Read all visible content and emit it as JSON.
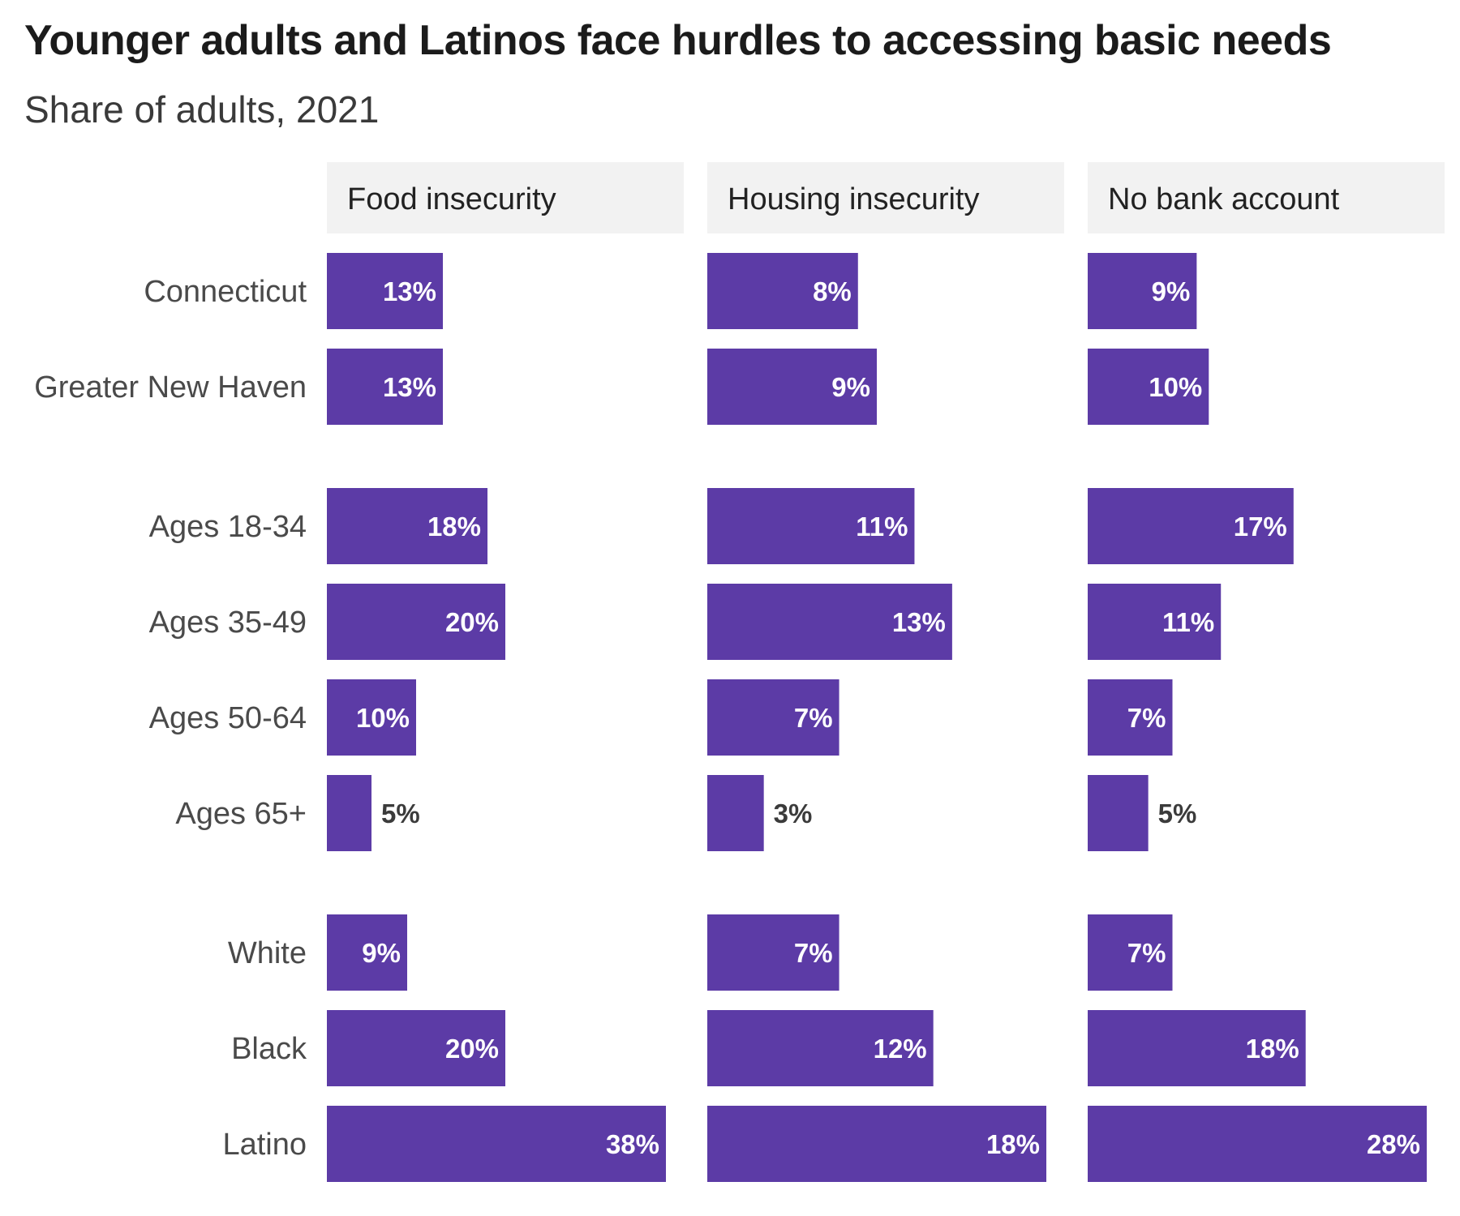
{
  "chart_data": {
    "type": "bar",
    "orientation": "horizontal",
    "title": "Younger adults and Latinos face hurdles to accessing basic needs",
    "subtitle": "Share of adults, 2021",
    "unit": "%",
    "categories": [
      "Connecticut",
      "Greater New Haven",
      "Ages 18-34",
      "Ages 35-49",
      "Ages 50-64",
      "Ages 65+",
      "White",
      "Black",
      "Latino"
    ],
    "groups": [
      [
        "Connecticut",
        "Greater New Haven"
      ],
      [
        "Ages 18-34",
        "Ages 35-49",
        "Ages 50-64",
        "Ages 65+"
      ],
      [
        "White",
        "Black",
        "Latino"
      ]
    ],
    "series": [
      {
        "name": "Food insecurity",
        "values": [
          13,
          13,
          18,
          20,
          10,
          5,
          9,
          20,
          38
        ]
      },
      {
        "name": "Housing insecurity",
        "values": [
          8,
          9,
          11,
          13,
          7,
          3,
          7,
          12,
          18
        ]
      },
      {
        "name": "No bank account",
        "values": [
          9,
          10,
          17,
          11,
          7,
          5,
          7,
          18,
          28
        ]
      }
    ],
    "xlim_per_facet": [
      [
        0,
        38
      ],
      [
        0,
        18
      ],
      [
        0,
        28
      ]
    ],
    "grid": false,
    "legend": "none",
    "colors": {
      "bar": "#5c3ba6",
      "label_inside": "#ffffff",
      "label_outside": "#3b3b3b",
      "facet_header_bg": "#f2f2f2"
    }
  }
}
